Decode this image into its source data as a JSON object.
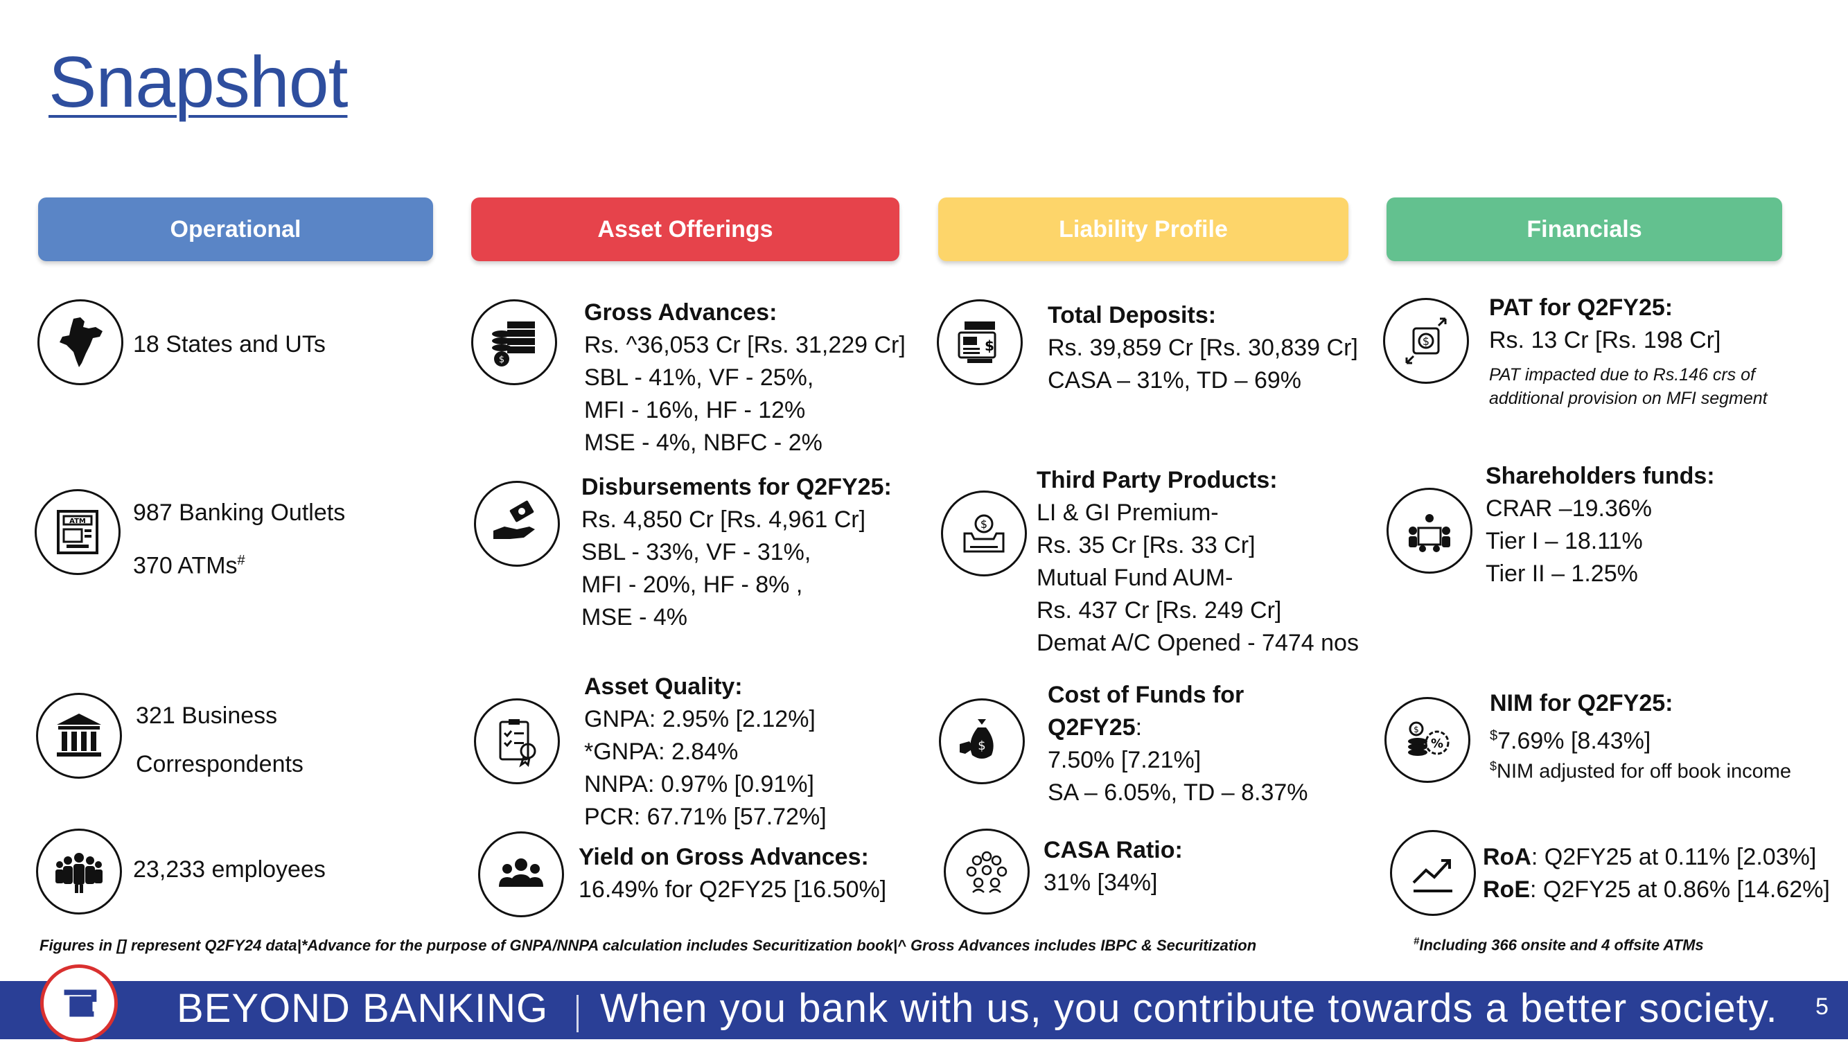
{
  "title": "Snapshot",
  "colors": {
    "operational": "#5a85c6",
    "asset": "#e6434b",
    "liability": "#fdd56a",
    "financials": "#63c18f",
    "banner": "#2a3f96",
    "title": "#2e4e9e"
  },
  "headers": {
    "operational": "Operational",
    "asset": "Asset Offerings",
    "liability": "Liability Profile",
    "financials": "Financials"
  },
  "operational": {
    "states": "18 States and UTs",
    "outlets": "987 Banking Outlets",
    "atms": "370 ATMs",
    "atms_mark": "#",
    "bc_line1": "321 Business",
    "bc_line2": "Correspondents",
    "employees": "23,233 employees"
  },
  "asset": {
    "gross_title": "Gross Advances:",
    "gross_lines": [
      "Rs. ^36,053 Cr [Rs. 31,229 Cr]",
      "SBL - 41%, VF - 25%,",
      "MFI - 16%, HF - 12%",
      "MSE - 4%,  NBFC - 2%"
    ],
    "disb_title": "Disbursements for Q2FY25:",
    "disb_lines": [
      "Rs. 4,850 Cr [Rs. 4,961 Cr]",
      "SBL - 33%, VF - 31%,",
      "MFI - 20%, HF - 8% ,",
      "MSE - 4%"
    ],
    "quality_title": "Asset Quality:",
    "quality_lines": [
      "GNPA: 2.95% [2.12%]",
      "*GNPA: 2.84%",
      "NNPA: 0.97% [0.91%]",
      "PCR: 67.71% [57.72%]"
    ],
    "yield_title": "Yield on Gross Advances:",
    "yield_line": "16.49% for Q2FY25 [16.50%]"
  },
  "liability": {
    "deposits_title": "Total Deposits:",
    "deposits_lines": [
      "Rs. 39,859  Cr [Rs. 30,839 Cr]",
      "CASA – 31%, TD – 69%"
    ],
    "tpp_title": "Third Party Products:",
    "tpp_lines": [
      "LI  & GI Premium-",
      "Rs. 35 Cr [Rs. 33 Cr]",
      "Mutual Fund AUM-",
      "Rs. 437 Cr [Rs. 249 Cr]",
      "Demat A/C Opened - 7474 nos"
    ],
    "cof_title1": "Cost of Funds for",
    "cof_title2": "Q2FY25",
    "cof_lines": [
      "7.50% [7.21%]",
      "SA – 6.05%, TD – 8.37%"
    ],
    "casa_title": "CASA Ratio:",
    "casa_line": "31% [34%]"
  },
  "financials": {
    "pat_title": "PAT for Q2FY25:",
    "pat_line": "Rs. 13 Cr [Rs. 198 Cr]",
    "pat_note1": "PAT impacted due to Rs.146 crs of",
    "pat_note2": "additional provision on MFI segment",
    "sh_title": "Shareholders funds:",
    "sh_lines": [
      "CRAR –19.36%",
      "Tier I – 18.11%",
      "Tier II – 1.25%"
    ],
    "nim_title": "NIM for Q2FY25:",
    "nim_mark": "$",
    "nim_line": "7.69% [8.43%]",
    "nim_note": "NIM adjusted for off book income",
    "roa_label": "RoA",
    "roa_text": ": Q2FY25 at 0.11% [2.03%]",
    "roe_label": "RoE",
    "roe_text": ": Q2FY25 at 0.86% [14.62%]"
  },
  "footnotes": {
    "left": "Figures in [] represent Q2FY24 data|*Advance for the purpose of GNPA/NNPA calculation includes Securitization book|^ Gross Advances includes IBPC & Securitization",
    "right_mark": "#",
    "right": "Including 366 onsite and 4 offsite ATMs"
  },
  "banner": {
    "left": "BEYOND BANKING",
    "right": "When you bank with us, you contribute towards a better society.",
    "page": "5"
  }
}
